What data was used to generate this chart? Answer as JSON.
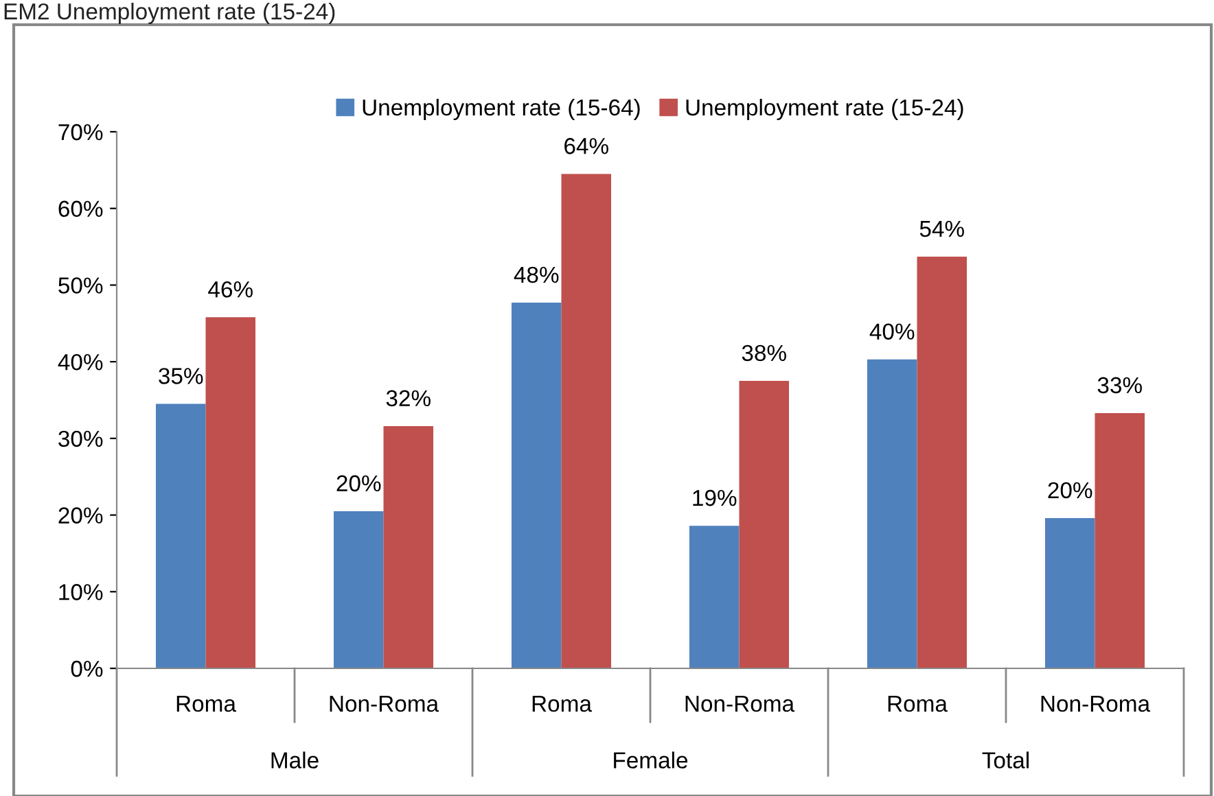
{
  "chart_data": {
    "type": "bar",
    "title": "EM2 Unemployment rate (15-24)",
    "categories": [
      "Roma",
      "Non-Roma",
      "Roma",
      "Non-Roma",
      "Roma",
      "Non-Roma"
    ],
    "annotations": [
      "Male",
      "Female",
      "Total"
    ],
    "series": [
      {
        "name": "Unemployment rate (15-64)",
        "color": "#4f81bd",
        "values": [
          34.5,
          20.5,
          47.7,
          18.6,
          40.3,
          19.6
        ],
        "value_labels": [
          "35%",
          "20%",
          "48%",
          "19%",
          "40%",
          "20%"
        ]
      },
      {
        "name": "Unemployment rate (15-24)",
        "color": "#c0504d",
        "values": [
          45.8,
          31.6,
          64.5,
          37.5,
          53.7,
          33.3
        ],
        "value_labels": [
          "46%",
          "32%",
          "64%",
          "38%",
          "54%",
          "33%"
        ]
      }
    ],
    "ylim": [
      0,
      70
    ],
    "yticks": [
      {
        "value": 0,
        "label": "0%"
      },
      {
        "value": 10,
        "label": "10%"
      },
      {
        "value": 20,
        "label": "20%"
      },
      {
        "value": 30,
        "label": "30%"
      },
      {
        "value": 40,
        "label": "40%"
      },
      {
        "value": 50,
        "label": "50%"
      },
      {
        "value": 60,
        "label": "60%"
      },
      {
        "value": 70,
        "label": "70%"
      }
    ],
    "legend": "top",
    "grid": false
  }
}
